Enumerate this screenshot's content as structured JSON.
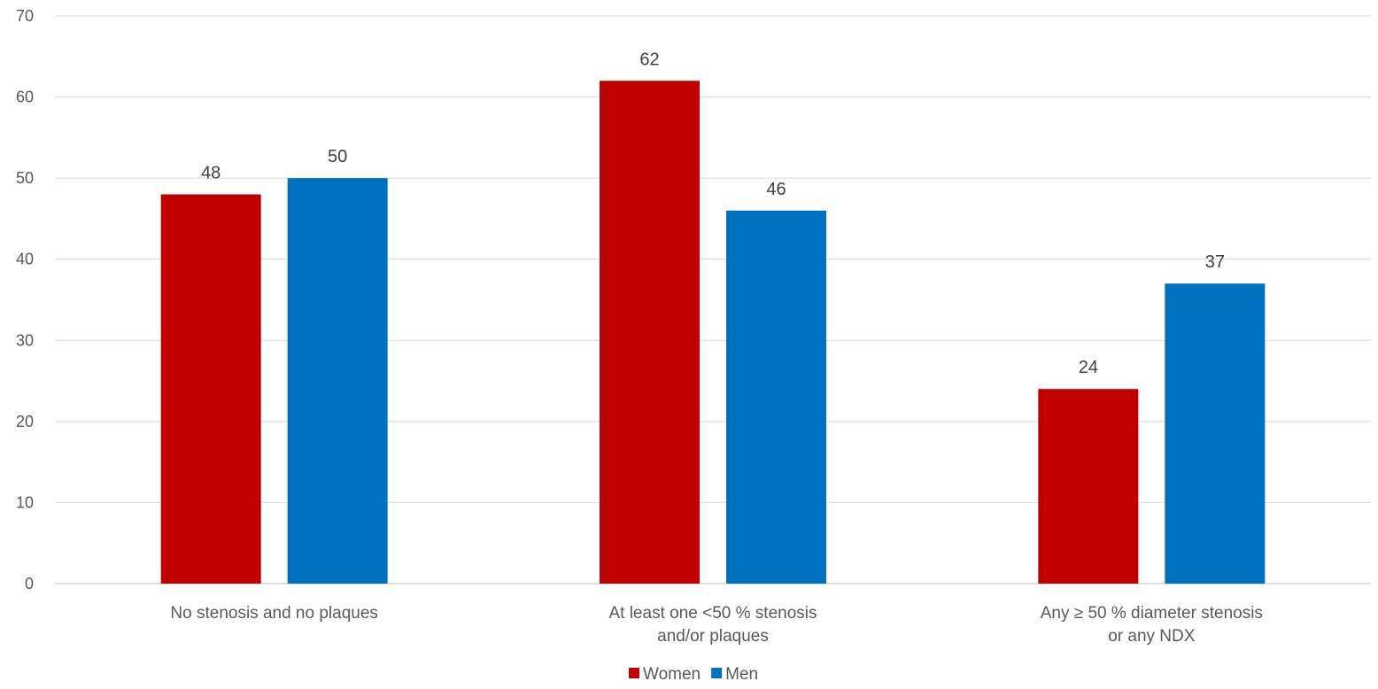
{
  "chart_data": {
    "type": "bar",
    "categories": [
      [
        "No stenosis and no plaques"
      ],
      [
        "At least one <50 % stenosis",
        "and/or plaques"
      ],
      [
        "Any ≥ 50 % diameter stenosis",
        "or any NDX"
      ]
    ],
    "series": [
      {
        "name": "Women",
        "color": "#c00000",
        "values": [
          48,
          62,
          24
        ]
      },
      {
        "name": "Men",
        "color": "#0070c0",
        "values": [
          50,
          46,
          37
        ]
      }
    ],
    "ylim": [
      0,
      70
    ],
    "yticks": [
      0,
      10,
      20,
      30,
      40,
      50,
      60,
      70
    ],
    "grid": true,
    "legend_position": "bottom-center",
    "data_labels": true
  }
}
